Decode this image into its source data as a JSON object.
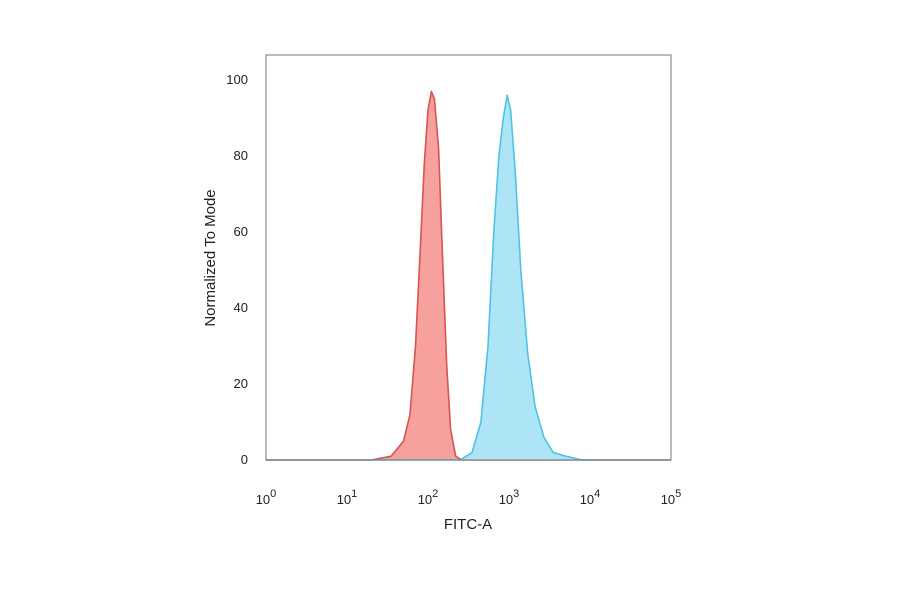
{
  "chart_data": {
    "type": "area",
    "title": "",
    "xlabel": "FITC-A",
    "ylabel": "Normalized To Mode",
    "x_scale": "log",
    "xlim": [
      1,
      100000
    ],
    "ylim": [
      0,
      100
    ],
    "grid": false,
    "y_ticks": [
      {
        "value": 0,
        "label": "0"
      },
      {
        "value": 20,
        "label": "20"
      },
      {
        "value": 40,
        "label": "40"
      },
      {
        "value": 60,
        "label": "60"
      },
      {
        "value": 80,
        "label": "80"
      },
      {
        "value": 100,
        "label": "100"
      }
    ],
    "x_ticks": [
      {
        "value": 1,
        "base": "10",
        "exp": "0"
      },
      {
        "value": 10,
        "base": "10",
        "exp": "1"
      },
      {
        "value": 100,
        "base": "10",
        "exp": "2"
      },
      {
        "value": 1000,
        "base": "10",
        "exp": "3"
      },
      {
        "value": 10000,
        "base": "10",
        "exp": "4"
      },
      {
        "value": 100000,
        "base": "10",
        "exp": "5"
      }
    ],
    "series": [
      {
        "fill": "#f4908c",
        "stroke": "#d9534f",
        "points": [
          [
            1,
            0
          ],
          [
            20,
            0
          ],
          [
            35,
            1
          ],
          [
            50,
            5
          ],
          [
            60,
            12
          ],
          [
            70,
            30
          ],
          [
            80,
            55
          ],
          [
            90,
            78
          ],
          [
            100,
            92
          ],
          [
            110,
            97
          ],
          [
            120,
            95
          ],
          [
            135,
            82
          ],
          [
            150,
            55
          ],
          [
            170,
            25
          ],
          [
            190,
            8
          ],
          [
            220,
            1
          ],
          [
            260,
            0
          ],
          [
            100000,
            0
          ]
        ]
      },
      {
        "fill": "#9fe1f4",
        "stroke": "#4fc3e3",
        "points": [
          [
            1,
            0
          ],
          [
            250,
            0
          ],
          [
            350,
            2
          ],
          [
            450,
            10
          ],
          [
            550,
            30
          ],
          [
            650,
            60
          ],
          [
            750,
            80
          ],
          [
            850,
            90
          ],
          [
            950,
            96
          ],
          [
            1050,
            92
          ],
          [
            1200,
            75
          ],
          [
            1400,
            50
          ],
          [
            1700,
            28
          ],
          [
            2100,
            14
          ],
          [
            2700,
            6
          ],
          [
            3500,
            2
          ],
          [
            5000,
            1
          ],
          [
            8000,
            0
          ],
          [
            100000,
            0
          ]
        ]
      }
    ]
  }
}
